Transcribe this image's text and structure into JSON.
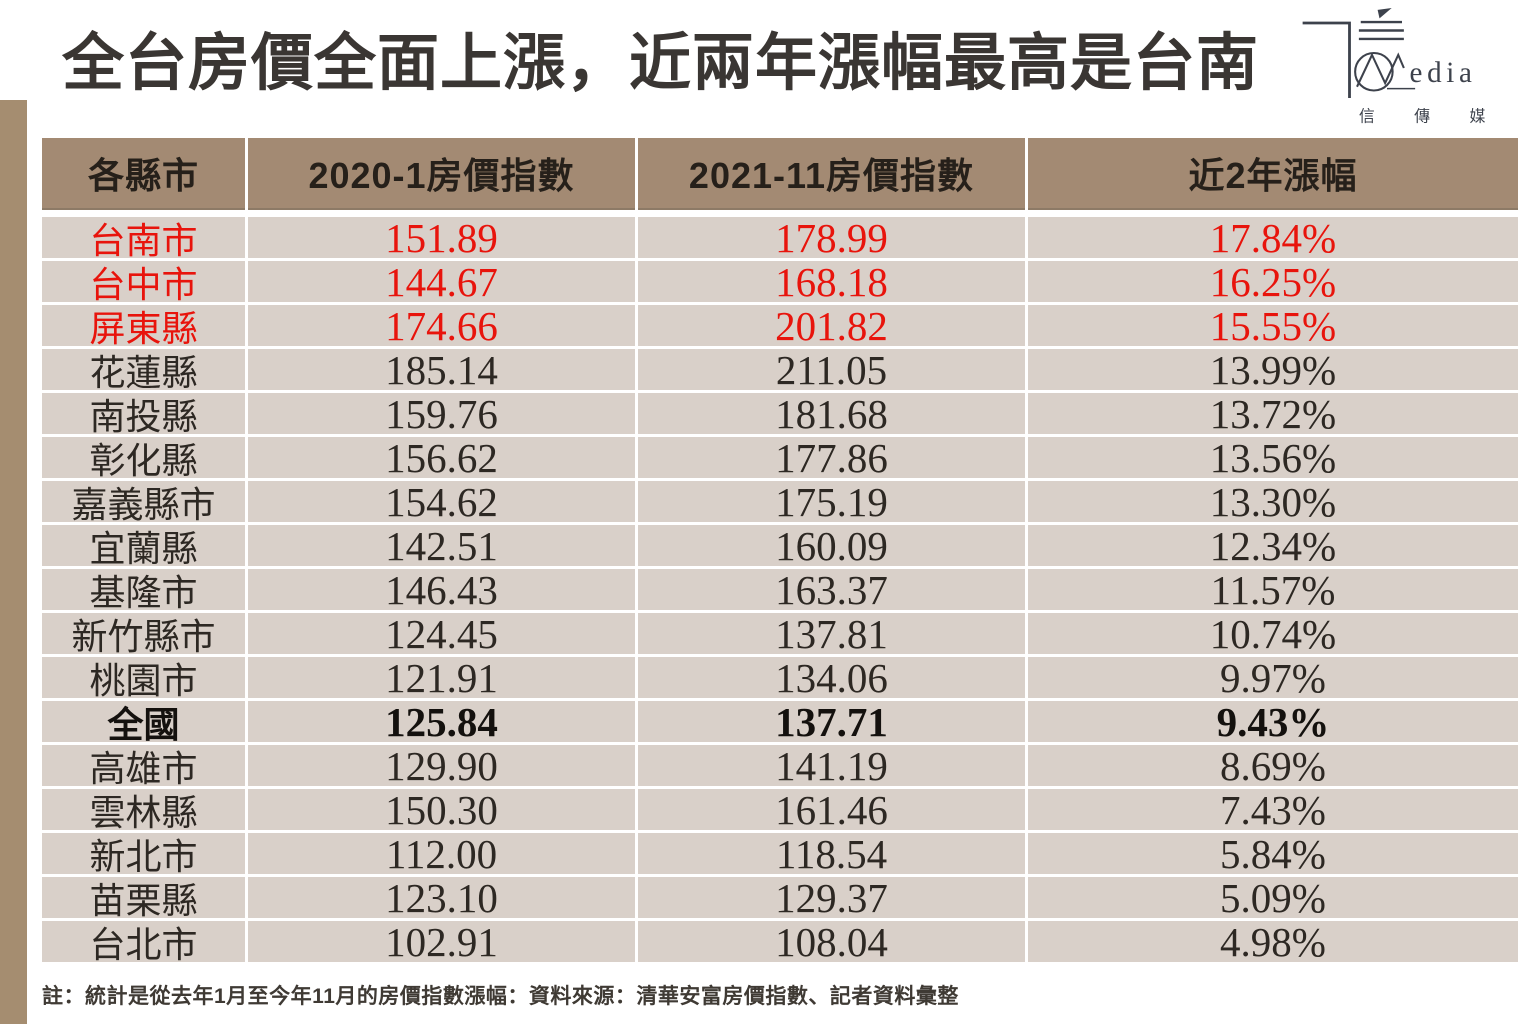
{
  "title": "全台房價全面上漲，近兩年漲幅最高是台南",
  "logo": {
    "name": "cnews-media-logo",
    "media_text": "edia",
    "cjk_text": "信傳媒"
  },
  "chart_data": {
    "type": "table",
    "title": "全台房價全面上漲，近兩年漲幅最高是台南",
    "columns": [
      "各縣市",
      "2020-1房價指數",
      "2021-11房價指數",
      "近2年漲幅"
    ],
    "rows": [
      {
        "city": "台南市",
        "index_2020_1": "151.89",
        "index_2021_11": "178.99",
        "change_2yr": "17.84%",
        "emphasis": "red"
      },
      {
        "city": "台中市",
        "index_2020_1": "144.67",
        "index_2021_11": "168.18",
        "change_2yr": "16.25%",
        "emphasis": "red"
      },
      {
        "city": "屏東縣",
        "index_2020_1": "174.66",
        "index_2021_11": "201.82",
        "change_2yr": "15.55%",
        "emphasis": "red"
      },
      {
        "city": "花蓮縣",
        "index_2020_1": "185.14",
        "index_2021_11": "211.05",
        "change_2yr": "13.99%",
        "emphasis": "normal"
      },
      {
        "city": "南投縣",
        "index_2020_1": "159.76",
        "index_2021_11": "181.68",
        "change_2yr": "13.72%",
        "emphasis": "normal"
      },
      {
        "city": "彰化縣",
        "index_2020_1": "156.62",
        "index_2021_11": "177.86",
        "change_2yr": "13.56%",
        "emphasis": "normal"
      },
      {
        "city": "嘉義縣市",
        "index_2020_1": "154.62",
        "index_2021_11": "175.19",
        "change_2yr": "13.30%",
        "emphasis": "normal"
      },
      {
        "city": "宜蘭縣",
        "index_2020_1": "142.51",
        "index_2021_11": "160.09",
        "change_2yr": "12.34%",
        "emphasis": "normal"
      },
      {
        "city": "基隆市",
        "index_2020_1": "146.43",
        "index_2021_11": "163.37",
        "change_2yr": "11.57%",
        "emphasis": "normal"
      },
      {
        "city": "新竹縣市",
        "index_2020_1": "124.45",
        "index_2021_11": "137.81",
        "change_2yr": "10.74%",
        "emphasis": "normal"
      },
      {
        "city": "桃園市",
        "index_2020_1": "121.91",
        "index_2021_11": "134.06",
        "change_2yr": "9.97%",
        "emphasis": "normal"
      },
      {
        "city": "全國",
        "index_2020_1": "125.84",
        "index_2021_11": "137.71",
        "change_2yr": "9.43%",
        "emphasis": "bold"
      },
      {
        "city": "高雄市",
        "index_2020_1": "129.90",
        "index_2021_11": "141.19",
        "change_2yr": "8.69%",
        "emphasis": "normal"
      },
      {
        "city": "雲林縣",
        "index_2020_1": "150.30",
        "index_2021_11": "161.46",
        "change_2yr": "7.43%",
        "emphasis": "normal"
      },
      {
        "city": "新北市",
        "index_2020_1": "112.00",
        "index_2021_11": "118.54",
        "change_2yr": "5.84%",
        "emphasis": "normal"
      },
      {
        "city": "苗栗縣",
        "index_2020_1": "123.10",
        "index_2021_11": "129.37",
        "change_2yr": "5.09%",
        "emphasis": "normal"
      },
      {
        "city": "台北市",
        "index_2020_1": "102.91",
        "index_2021_11": "108.04",
        "change_2yr": "4.98%",
        "emphasis": "normal"
      }
    ],
    "legend": "red = top-3 increase, bold = nationwide average",
    "grid": "white separators between cells"
  },
  "note": "註：統計是從去年1月至今年11月的房價指數漲幅：資料來源：清華安富房價指數、記者資料彙整",
  "colors": {
    "highlight_red": "#e8140c",
    "header_bg": "#a38a73",
    "row_bg": "#d9d0c9",
    "accent_bar": "#a58d70",
    "title_text": "#3a3633"
  }
}
